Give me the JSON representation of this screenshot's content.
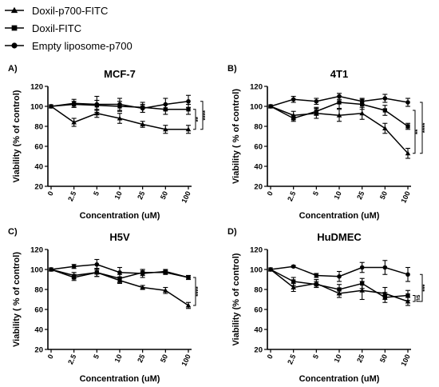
{
  "legend": [
    {
      "label": "Doxil-p700-FITC",
      "marker": "triangle"
    },
    {
      "label": "Doxil-FITC",
      "marker": "square"
    },
    {
      "label": "Empty liposome-p700",
      "marker": "circle"
    }
  ],
  "chart_data": [
    {
      "type": "line",
      "panel_letter": "A)",
      "title": "MCF-7",
      "xlabel": "Concentration (uM)",
      "ylabel": "Viability (% of control)",
      "categories": [
        "0",
        "2.5",
        "5",
        "10",
        "25",
        "50",
        "100"
      ],
      "ylim": [
        20,
        120
      ],
      "yticks": [
        20,
        40,
        60,
        80,
        100,
        120
      ],
      "series": [
        {
          "name": "Doxil-p700-FITC",
          "marker": "triangle",
          "values": [
            100,
            84,
            93,
            88,
            82,
            77,
            77
          ],
          "errors": [
            0,
            4,
            4,
            5,
            3,
            4,
            4
          ]
        },
        {
          "name": "Doxil-FITC",
          "marker": "square",
          "values": [
            100,
            102,
            101,
            100,
            99,
            97,
            97
          ],
          "errors": [
            0,
            3,
            5,
            5,
            5,
            5,
            5
          ]
        },
        {
          "name": "Empty liposome-p700",
          "marker": "circle",
          "values": [
            100,
            103,
            102,
            102,
            98,
            102,
            105
          ],
          "errors": [
            0,
            4,
            8,
            6,
            4,
            6,
            6
          ]
        }
      ],
      "significance": [
        {
          "text": "**",
          "from": 97,
          "to": 77
        },
        {
          "text": "****",
          "from": 105,
          "to": 77
        }
      ]
    },
    {
      "type": "line",
      "panel_letter": "B)",
      "title": "4T1",
      "xlabel": "Concentration (uM)",
      "ylabel": "Viability ( % of control)",
      "categories": [
        "0",
        "2.5",
        "5",
        "10",
        "25",
        "50",
        "100"
      ],
      "ylim": [
        20,
        120
      ],
      "yticks": [
        20,
        40,
        60,
        80,
        100,
        120
      ],
      "series": [
        {
          "name": "Doxil-p700-FITC",
          "marker": "triangle",
          "values": [
            100,
            91,
            93,
            91,
            93,
            78,
            53
          ],
          "errors": [
            0,
            4,
            5,
            6,
            6,
            5,
            5
          ]
        },
        {
          "name": "Doxil-FITC",
          "marker": "square",
          "values": [
            100,
            88,
            95,
            104,
            102,
            96,
            80
          ],
          "errors": [
            0,
            3,
            4,
            6,
            5,
            5,
            3
          ]
        },
        {
          "name": "Empty liposome-p700",
          "marker": "circle",
          "values": [
            100,
            107,
            105,
            110,
            105,
            108,
            104
          ],
          "errors": [
            0,
            3,
            3,
            3,
            3,
            4,
            4
          ]
        }
      ],
      "significance": [
        {
          "text": "**",
          "from": 96,
          "to": 53
        },
        {
          "text": "****",
          "from": 104,
          "to": 53
        }
      ]
    },
    {
      "type": "line",
      "panel_letter": "C)",
      "title": "H5V",
      "xlabel": "Concentration (uM)",
      "ylabel": "Viability ( % of control)",
      "categories": [
        "0",
        "2.5",
        "5",
        "10",
        "25",
        "50",
        "100"
      ],
      "ylim": [
        20,
        120
      ],
      "yticks": [
        20,
        40,
        60,
        80,
        100,
        120
      ],
      "series": [
        {
          "name": "Doxil-p700-FITC",
          "marker": "triangle",
          "values": [
            100,
            94,
            97,
            89,
            82,
            79,
            64
          ],
          "errors": [
            0,
            3,
            4,
            3,
            2,
            3,
            3
          ]
        },
        {
          "name": "Doxil-FITC",
          "marker": "square",
          "values": [
            100,
            92,
            97,
            91,
            97,
            97,
            92
          ],
          "errors": [
            0,
            3,
            4,
            4,
            3,
            2,
            2
          ]
        },
        {
          "name": "Empty liposome-p700",
          "marker": "circle",
          "values": [
            100,
            103,
            105,
            97,
            96,
            98,
            92
          ],
          "errors": [
            0,
            2,
            5,
            5,
            4,
            2,
            2
          ]
        }
      ],
      "significance": [
        {
          "text": "****",
          "from": 92,
          "to": 64
        }
      ]
    },
    {
      "type": "line",
      "panel_letter": "D)",
      "title": "HuDMEC",
      "xlabel": "Concentration (uM)",
      "ylabel": "Viability (% of control)",
      "categories": [
        "0",
        "2.5",
        "5",
        "10",
        "25",
        "50",
        "100"
      ],
      "ylim": [
        20,
        120
      ],
      "yticks": [
        20,
        40,
        60,
        80,
        100,
        120
      ],
      "series": [
        {
          "name": "Doxil-p700-FITC",
          "marker": "triangle",
          "values": [
            100,
            82,
            86,
            76,
            79,
            76,
            68
          ],
          "errors": [
            0,
            4,
            4,
            4,
            9,
            6,
            4
          ]
        },
        {
          "name": "Doxil-FITC",
          "marker": "square",
          "values": [
            100,
            88,
            85,
            80,
            86,
            72,
            74
          ],
          "errors": [
            0,
            4,
            3,
            5,
            5,
            5,
            5
          ]
        },
        {
          "name": "Empty liposome-p700",
          "marker": "circle",
          "values": [
            100,
            103,
            94,
            93,
            102,
            102,
            95
          ],
          "errors": [
            0,
            1,
            2,
            5,
            5,
            7,
            7
          ]
        }
      ],
      "significance": [
        {
          "text": "ns",
          "from": 74,
          "to": 68
        },
        {
          "text": "***",
          "from": 95,
          "to": 68
        }
      ]
    }
  ]
}
